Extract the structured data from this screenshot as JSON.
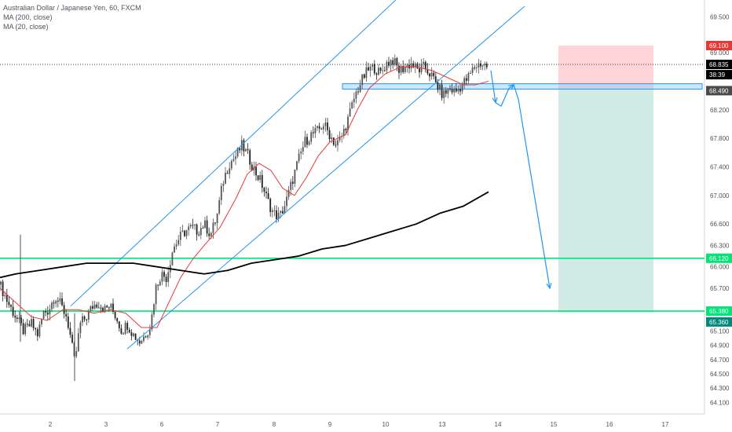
{
  "legend": {
    "title": "Australian Dollar / Japanese Yen, 60, FXCM",
    "ma200": "MA (200, close)",
    "ma20": "MA (20, close)"
  },
  "colors": {
    "up_candle": "#555555",
    "down_candle": "#222222",
    "ma20": "#e53935",
    "ma200": "#000000",
    "channel": "#2196f3",
    "support": "#00e676",
    "stop_zone": "#ffcdd2",
    "target_zone": "#c8e6e0",
    "zone_box": "#90caf9",
    "price_tag": "#000000",
    "stop_tag": "#e53935",
    "target_tag": "#00897b"
  },
  "chart_data": {
    "type": "candlestick",
    "title": "Australian Dollar / Japanese Yen, 60, FXCM",
    "xlabel": "",
    "ylabel": "",
    "x_ticks": [
      "2",
      "3",
      "6",
      "7",
      "8",
      "9",
      "10",
      "13",
      "14",
      "15",
      "16",
      "17"
    ],
    "y_ticks": [
      "69.500",
      "69.100",
      "69.000",
      "68.835",
      "68.490",
      "68.200",
      "67.800",
      "67.400",
      "67.000",
      "66.600",
      "66.300",
      "66.120",
      "66.000",
      "65.700",
      "65.380",
      "65.360",
      "65.100",
      "64.900",
      "64.700",
      "64.500",
      "64.300",
      "64.100"
    ],
    "ylim": [
      63.95,
      69.65
    ],
    "grid": false,
    "current_price": {
      "label": "68.835",
      "value": 68.835,
      "countdown": "38:39"
    },
    "levels": {
      "stop": {
        "label": "69.100",
        "value": 69.1
      },
      "zone": {
        "label": "68.490",
        "value": 68.49
      },
      "support_high": {
        "label": "66.120",
        "value": 66.12
      },
      "support_low": {
        "label": "65.380",
        "value": 65.38
      },
      "target": {
        "label": "65.360",
        "value": 65.36
      }
    },
    "price_path": [
      [
        0,
        65.75
      ],
      [
        10,
        65.5
      ],
      [
        20,
        65.3
      ],
      [
        30,
        65.1
      ],
      [
        40,
        65.2
      ],
      [
        48,
        65.05
      ],
      [
        55,
        65.35
      ],
      [
        62,
        65.4
      ],
      [
        70,
        65.6
      ],
      [
        78,
        65.45
      ],
      [
        85,
        65.3
      ],
      [
        90,
        65.0
      ],
      [
        95,
        64.65
      ],
      [
        102,
        65.2
      ],
      [
        110,
        65.3
      ],
      [
        118,
        65.45
      ],
      [
        125,
        65.5
      ],
      [
        133,
        65.4
      ],
      [
        140,
        65.45
      ],
      [
        148,
        65.3
      ],
      [
        155,
        65.1
      ],
      [
        162,
        65.2
      ],
      [
        170,
        65.05
      ],
      [
        178,
        64.95
      ],
      [
        185,
        65.05
      ],
      [
        192,
        65.2
      ],
      [
        198,
        65.7
      ],
      [
        205,
        65.9
      ],
      [
        212,
        65.85
      ],
      [
        220,
        66.25
      ],
      [
        228,
        66.4
      ],
      [
        236,
        66.5
      ],
      [
        244,
        66.55
      ],
      [
        252,
        66.5
      ],
      [
        260,
        66.6
      ],
      [
        268,
        66.45
      ],
      [
        276,
        66.7
      ],
      [
        284,
        67.2
      ],
      [
        292,
        67.45
      ],
      [
        300,
        67.55
      ],
      [
        308,
        67.7
      ],
      [
        316,
        67.55
      ],
      [
        324,
        67.35
      ],
      [
        332,
        67.2
      ],
      [
        340,
        66.95
      ],
      [
        348,
        66.75
      ],
      [
        356,
        66.7
      ],
      [
        364,
        66.9
      ],
      [
        372,
        67.2
      ],
      [
        380,
        67.5
      ],
      [
        388,
        67.75
      ],
      [
        396,
        67.85
      ],
      [
        404,
        67.9
      ],
      [
        412,
        68.0
      ],
      [
        420,
        67.85
      ],
      [
        428,
        67.7
      ],
      [
        436,
        67.85
      ],
      [
        444,
        68.1
      ],
      [
        452,
        68.4
      ],
      [
        460,
        68.6
      ],
      [
        468,
        68.75
      ],
      [
        476,
        68.8
      ],
      [
        484,
        68.7
      ],
      [
        492,
        68.85
      ],
      [
        500,
        68.9
      ],
      [
        508,
        68.75
      ],
      [
        516,
        68.8
      ],
      [
        524,
        68.85
      ],
      [
        532,
        68.75
      ],
      [
        540,
        68.8
      ],
      [
        548,
        68.7
      ],
      [
        556,
        68.55
      ],
      [
        564,
        68.4
      ],
      [
        572,
        68.5
      ],
      [
        580,
        68.45
      ],
      [
        588,
        68.55
      ],
      [
        596,
        68.65
      ],
      [
        604,
        68.8
      ],
      [
        612,
        68.85
      ],
      [
        622,
        68.8
      ]
    ],
    "spikes": [
      [
        26,
        66.45,
        64.95
      ],
      [
        95,
        65.35,
        64.4
      ]
    ],
    "ma20": [
      [
        0,
        65.7
      ],
      [
        20,
        65.5
      ],
      [
        40,
        65.3
      ],
      [
        60,
        65.25
      ],
      [
        80,
        65.4
      ],
      [
        100,
        65.4
      ],
      [
        120,
        65.35
      ],
      [
        140,
        65.4
      ],
      [
        160,
        65.35
      ],
      [
        180,
        65.15
      ],
      [
        200,
        65.15
      ],
      [
        215,
        65.5
      ],
      [
        230,
        65.85
      ],
      [
        245,
        66.1
      ],
      [
        260,
        66.3
      ],
      [
        280,
        66.55
      ],
      [
        300,
        66.95
      ],
      [
        315,
        67.3
      ],
      [
        330,
        67.45
      ],
      [
        345,
        67.35
      ],
      [
        360,
        67.1
      ],
      [
        375,
        67.0
      ],
      [
        390,
        67.25
      ],
      [
        405,
        67.55
      ],
      [
        420,
        67.75
      ],
      [
        440,
        67.85
      ],
      [
        455,
        68.2
      ],
      [
        470,
        68.5
      ],
      [
        490,
        68.7
      ],
      [
        510,
        68.8
      ],
      [
        530,
        68.8
      ],
      [
        550,
        68.75
      ],
      [
        570,
        68.65
      ],
      [
        590,
        68.55
      ],
      [
        605,
        68.55
      ],
      [
        622,
        68.6
      ]
    ],
    "ma200": [
      [
        0,
        65.85
      ],
      [
        20,
        65.9
      ],
      [
        50,
        65.95
      ],
      [
        80,
        66.0
      ],
      [
        110,
        66.05
      ],
      [
        140,
        66.05
      ],
      [
        170,
        66.05
      ],
      [
        200,
        66.0
      ],
      [
        230,
        65.95
      ],
      [
        260,
        65.9
      ],
      [
        290,
        65.95
      ],
      [
        320,
        66.05
      ],
      [
        350,
        66.1
      ],
      [
        380,
        66.15
      ],
      [
        410,
        66.25
      ],
      [
        440,
        66.3
      ],
      [
        470,
        66.4
      ],
      [
        500,
        66.5
      ],
      [
        530,
        66.6
      ],
      [
        560,
        66.75
      ],
      [
        590,
        66.85
      ],
      [
        622,
        67.05
      ]
    ],
    "channel_upper": [
      [
        90,
        65.45
      ],
      [
        505,
        69.75
      ]
    ],
    "channel_lower": [
      [
        162,
        64.85
      ],
      [
        668,
        69.65
      ]
    ],
    "zone_box": {
      "x_from": 436,
      "x_to": 894,
      "y_top": 68.565,
      "y_bottom": 68.49
    },
    "position": {
      "x_from": 711,
      "x_to": 832,
      "stop": 69.1,
      "entry": 68.49,
      "target": 65.36
    },
    "projection": [
      [
        625,
        68.75
      ],
      [
        631,
        68.3
      ],
      [
        638,
        68.25
      ],
      [
        648,
        68.5
      ],
      [
        654,
        68.55
      ],
      [
        660,
        68.35
      ],
      [
        700,
        65.7
      ]
    ]
  }
}
